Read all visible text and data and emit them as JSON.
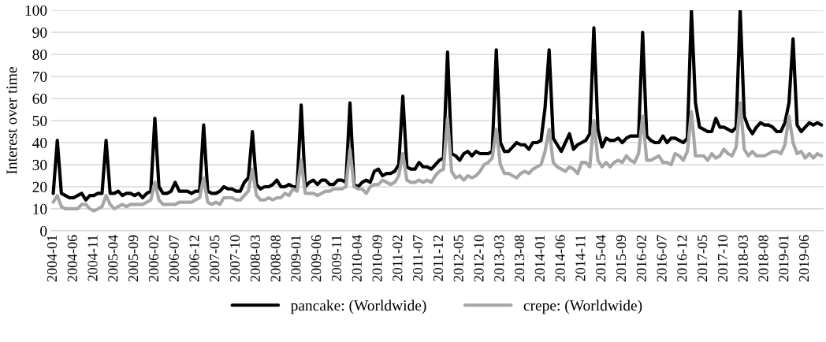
{
  "chart_data": {
    "type": "line",
    "ylabel": "Interest over time",
    "categories": [
      "2004-01",
      null,
      null,
      null,
      null,
      "2004-06",
      null,
      null,
      null,
      null,
      "2004-11",
      null,
      null,
      null,
      null,
      "2005-04",
      null,
      null,
      null,
      null,
      "2005-09",
      null,
      null,
      null,
      null,
      "2006-02",
      null,
      null,
      null,
      null,
      "2006-07",
      null,
      null,
      null,
      null,
      "2006-12",
      null,
      null,
      null,
      null,
      "2007-05",
      null,
      null,
      null,
      null,
      "2007-10",
      null,
      null,
      null,
      null,
      "2008-03",
      null,
      null,
      null,
      null,
      "2008-08",
      null,
      null,
      null,
      null,
      "2009-01",
      null,
      null,
      null,
      null,
      "2009-06",
      null,
      null,
      null,
      null,
      "2009-11",
      null,
      null,
      null,
      null,
      "2010-04",
      null,
      null,
      null,
      null,
      "2010-09",
      null,
      null,
      null,
      null,
      "2011-02",
      null,
      null,
      null,
      null,
      "2011-07",
      null,
      null,
      null,
      null,
      "2011-12",
      null,
      null,
      null,
      null,
      "2012-05",
      null,
      null,
      null,
      null,
      "2012-10",
      null,
      null,
      null,
      null,
      "2013-03",
      null,
      null,
      null,
      null,
      "2013-08",
      null,
      null,
      null,
      null,
      "2014-01",
      null,
      null,
      null,
      null,
      "2014-06",
      null,
      null,
      null,
      null,
      "2014-11",
      null,
      null,
      null,
      null,
      "2015-04",
      null,
      null,
      null,
      null,
      "2015-09",
      null,
      null,
      null,
      null,
      "2016-02",
      null,
      null,
      null,
      null,
      "2016-07",
      null,
      null,
      null,
      null,
      "2016-12",
      null,
      null,
      null,
      null,
      "2017-05",
      null,
      null,
      null,
      null,
      "2017-10",
      null,
      null,
      null,
      null,
      "2018-03",
      null,
      null,
      null,
      null,
      "2018-08",
      null,
      null,
      null,
      null,
      "2019-01",
      null,
      null,
      null,
      null,
      "2019-06",
      null,
      null,
      null,
      null
    ],
    "series": [
      {
        "name": "pancake: (Worldwide)",
        "color": "#000000",
        "values": [
          17,
          41,
          17,
          16,
          15,
          15,
          16,
          17,
          14,
          16,
          16,
          17,
          17,
          41,
          17,
          17,
          18,
          16,
          17,
          17,
          16,
          17,
          15,
          17,
          18,
          51,
          20,
          17,
          17,
          18,
          22,
          18,
          18,
          18,
          17,
          18,
          18,
          48,
          18,
          17,
          17,
          18,
          20,
          19,
          19,
          18,
          18,
          22,
          24,
          45,
          21,
          19,
          20,
          20,
          21,
          23,
          20,
          20,
          21,
          20,
          20,
          57,
          20,
          22,
          23,
          21,
          23,
          23,
          21,
          21,
          23,
          23,
          22,
          58,
          21,
          20,
          22,
          23,
          22,
          27,
          28,
          25,
          26,
          26,
          27,
          30,
          61,
          29,
          28,
          28,
          31,
          29,
          29,
          28,
          30,
          32,
          33,
          81,
          35,
          34,
          32,
          35,
          36,
          34,
          36,
          35,
          35,
          35,
          36,
          82,
          40,
          36,
          36,
          38,
          40,
          39,
          39,
          37,
          40,
          40,
          41,
          56,
          82,
          42,
          39,
          36,
          40,
          44,
          37,
          39,
          40,
          41,
          44,
          92,
          46,
          38,
          42,
          41,
          41,
          42,
          40,
          42,
          43,
          43,
          43,
          90,
          43,
          41,
          40,
          40,
          43,
          40,
          42,
          42,
          41,
          40,
          42,
          100,
          58,
          47,
          46,
          45,
          45,
          51,
          47,
          47,
          46,
          45,
          47,
          100,
          52,
          47,
          44,
          47,
          49,
          48,
          48,
          47,
          45,
          45,
          49,
          58,
          87,
          48,
          45,
          47,
          49,
          48,
          49,
          48
        ]
      },
      {
        "name": "crepe: (Worldwide)",
        "color": "#a6a6a6",
        "values": [
          13,
          16,
          11,
          10,
          10,
          10,
          10,
          12,
          12,
          10,
          9,
          10,
          11,
          16,
          12,
          10,
          11,
          12,
          11,
          12,
          12,
          12,
          12,
          13,
          14,
          22,
          14,
          12,
          12,
          12,
          12,
          13,
          13,
          13,
          13,
          14,
          15,
          24,
          13,
          12,
          13,
          12,
          15,
          15,
          15,
          14,
          14,
          16,
          18,
          28,
          16,
          14,
          14,
          15,
          14,
          15,
          15,
          17,
          16,
          19,
          18,
          32,
          17,
          17,
          17,
          16,
          17,
          18,
          18,
          19,
          19,
          19,
          20,
          37,
          20,
          19,
          19,
          17,
          20,
          21,
          21,
          23,
          22,
          21,
          22,
          25,
          35,
          23,
          22,
          22,
          23,
          22,
          23,
          22,
          25,
          27,
          28,
          51,
          27,
          24,
          25,
          23,
          25,
          24,
          25,
          27,
          30,
          31,
          33,
          46,
          30,
          26,
          26,
          25,
          24,
          26,
          27,
          26,
          28,
          29,
          30,
          36,
          46,
          31,
          29,
          28,
          27,
          29,
          28,
          26,
          31,
          31,
          29,
          50,
          32,
          29,
          31,
          29,
          31,
          32,
          31,
          34,
          32,
          31,
          35,
          52,
          32,
          32,
          33,
          34,
          31,
          31,
          30,
          35,
          34,
          32,
          36,
          54,
          34,
          34,
          34,
          32,
          35,
          33,
          34,
          37,
          35,
          34,
          38,
          58,
          37,
          34,
          36,
          34,
          34,
          34,
          35,
          36,
          36,
          35,
          39,
          52,
          40,
          35,
          36,
          33,
          35,
          33,
          35,
          34
        ]
      }
    ],
    "ylim": [
      0,
      100
    ],
    "yticks": [
      0,
      10,
      20,
      30,
      40,
      50,
      60,
      70,
      80,
      90,
      100
    ],
    "grid": "y",
    "legend": "bottom",
    "line_style": "solid",
    "marker": "none"
  }
}
